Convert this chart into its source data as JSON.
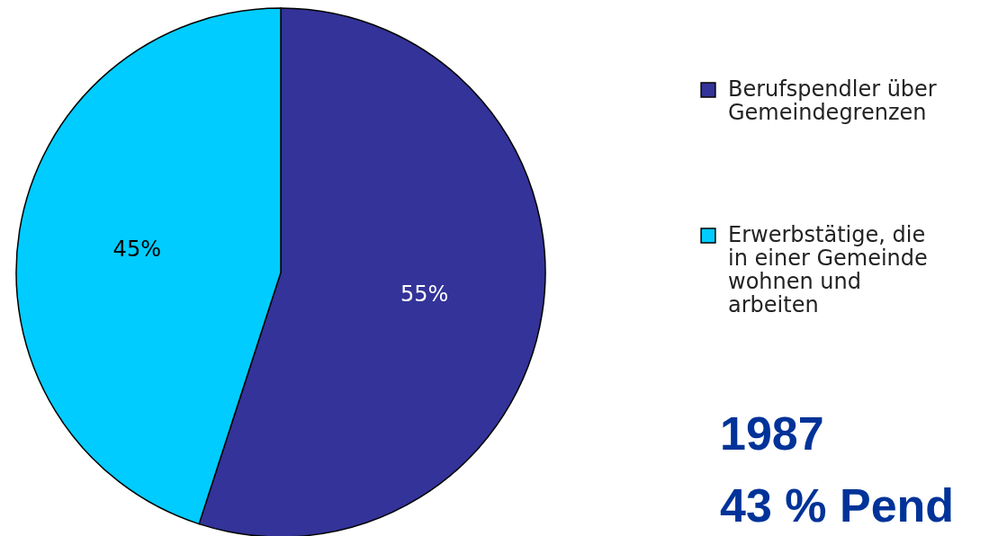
{
  "chart_data": {
    "type": "pie",
    "title": "1987",
    "annotations": [
      "43 % Pend"
    ],
    "categories": [
      "Berufspendler über Gemeindegrenzen",
      "Erwerbstätige, die in einer Gemeinde wohnen und arbeiten"
    ],
    "values": [
      55,
      45
    ],
    "value_labels": [
      "55%",
      "45%"
    ],
    "colors": [
      "#333399",
      "#00ccff"
    ],
    "legend": "right"
  }
}
